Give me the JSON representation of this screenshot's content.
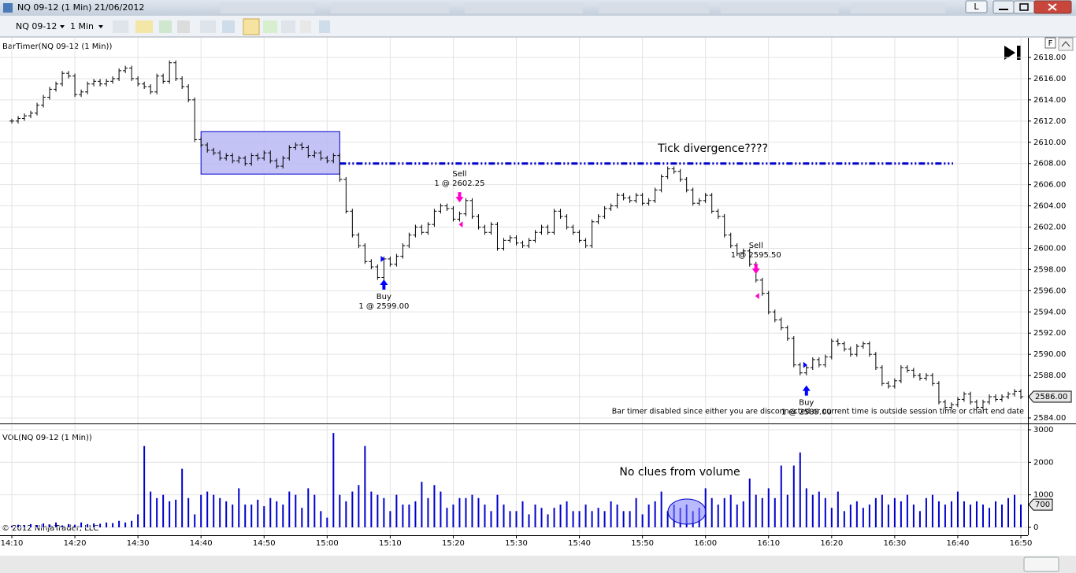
{
  "window": {
    "title": "NQ 09-12 (1 Min)  21/06/2012",
    "layout_button": "L"
  },
  "toolbar": {
    "instrument": "NQ 09-12",
    "interval": "1 Min"
  },
  "chart_data": {
    "type": "ohlc",
    "indicator_label": "BarTimer(NQ 09-12 (1 Min))",
    "x": [
      "14:10",
      "14:11",
      "14:12",
      "14:13",
      "14:14",
      "14:15",
      "14:16",
      "14:17",
      "14:18",
      "14:19",
      "14:20",
      "14:21",
      "14:22",
      "14:23",
      "14:24",
      "14:25",
      "14:26",
      "14:27",
      "14:28",
      "14:29",
      "14:30",
      "14:31",
      "14:32",
      "14:33",
      "14:34",
      "14:35",
      "14:36",
      "14:37",
      "14:38",
      "14:39",
      "14:40",
      "14:41",
      "14:42",
      "14:43",
      "14:44",
      "14:45",
      "14:46",
      "14:47",
      "14:48",
      "14:49",
      "14:50",
      "14:51",
      "14:52",
      "14:53",
      "14:54",
      "14:55",
      "14:56",
      "14:57",
      "14:58",
      "14:59",
      "15:00",
      "15:01",
      "15:02",
      "15:03",
      "15:04",
      "15:05",
      "15:06",
      "15:07",
      "15:08",
      "15:09",
      "15:10",
      "15:11",
      "15:12",
      "15:13",
      "15:14",
      "15:15",
      "15:16",
      "15:17",
      "15:18",
      "15:19",
      "15:20",
      "15:21",
      "15:22",
      "15:23",
      "15:24",
      "15:25",
      "15:26",
      "15:27",
      "15:28",
      "15:29",
      "15:30",
      "15:31",
      "15:32",
      "15:33",
      "15:34",
      "15:35",
      "15:36",
      "15:37",
      "15:38",
      "15:39",
      "15:40",
      "15:41",
      "15:42",
      "15:43",
      "15:44",
      "15:45",
      "15:46",
      "15:47",
      "15:48",
      "15:49",
      "15:50",
      "15:51",
      "15:52",
      "15:53",
      "15:54",
      "15:55",
      "15:56",
      "15:57",
      "15:58",
      "15:59",
      "16:00",
      "16:01",
      "16:02",
      "16:03",
      "16:04",
      "16:05",
      "16:06",
      "16:07",
      "16:08",
      "16:09",
      "16:10",
      "16:11",
      "16:12",
      "16:13",
      "16:14",
      "16:15",
      "16:16",
      "16:17",
      "16:18",
      "16:19",
      "16:20",
      "16:21",
      "16:22",
      "16:23",
      "16:24",
      "16:25",
      "16:26",
      "16:27",
      "16:28",
      "16:29",
      "16:30",
      "16:31",
      "16:32",
      "16:33",
      "16:34",
      "16:35",
      "16:36",
      "16:37",
      "16:38",
      "16:39",
      "16:40",
      "16:41",
      "16:42",
      "16:43",
      "16:44",
      "16:45",
      "16:46",
      "16:47",
      "16:48",
      "16:49",
      "16:50"
    ],
    "values": [
      2612,
      2612.25,
      2612.5,
      2612.75,
      2613.5,
      2614.25,
      2615,
      2615.5,
      2616.5,
      2616.25,
      2614.5,
      2614.75,
      2615.5,
      2615.75,
      2615.5,
      2615.75,
      2616,
      2616.75,
      2617,
      2616,
      2615.5,
      2615.25,
      2614.75,
      2616.25,
      2615.75,
      2617.5,
      2616,
      2615.25,
      2614,
      2610.25,
      2609.75,
      2609.25,
      2609,
      2608.5,
      2608.75,
      2608.25,
      2608.5,
      2608,
      2608.75,
      2608.5,
      2609,
      2608.25,
      2607.75,
      2608.5,
      2609.5,
      2609.75,
      2609.5,
      2608.75,
      2609,
      2608.5,
      2608.25,
      2608.75,
      2606.5,
      2603.5,
      2601.25,
      2600.25,
      2598.75,
      2598.25,
      2597.25,
      2599,
      2598.5,
      2599.25,
      2600.25,
      2601.25,
      2602,
      2601.5,
      2602.25,
      2603.5,
      2604,
      2603.75,
      2602.75,
      2603.25,
      2604.5,
      2603,
      2602,
      2601.5,
      2602.25,
      2600,
      2600.75,
      2601,
      2600.5,
      2600.25,
      2600.75,
      2601.5,
      2602,
      2601.5,
      2603.5,
      2603,
      2602,
      2601.5,
      2600.75,
      2600.25,
      2602.5,
      2603,
      2603.75,
      2604,
      2605,
      2604.75,
      2604.5,
      2605,
      2604.25,
      2604.5,
      2605.5,
      2606.75,
      2607.5,
      2607.25,
      2606.5,
      2605.5,
      2604.25,
      2604.5,
      2605,
      2603.5,
      2603,
      2601.25,
      2600.25,
      2599.5,
      2599.75,
      2598.5,
      2597,
      2595.75,
      2594,
      2593.25,
      2592.5,
      2591.5,
      2589,
      2588.25,
      2588.75,
      2589.5,
      2589,
      2589.75,
      2591.25,
      2591,
      2590.5,
      2590,
      2590.75,
      2591,
      2590,
      2588.75,
      2587.25,
      2587,
      2587.5,
      2588.75,
      2588.5,
      2588,
      2587.75,
      2588,
      2587.25,
      2585.5,
      2585,
      2585.25,
      2585.75,
      2586.25,
      2585.5,
      2585,
      2585.5,
      2586,
      2585.75,
      2586,
      2586.25,
      2586.5,
      2586
    ],
    "color": "#000000",
    "ylim": [
      2584,
      2618
    ],
    "yticks": [
      {
        "value": 2584,
        "label": "2584.00"
      },
      {
        "value": 2586,
        "label": "2586.00"
      },
      {
        "value": 2588,
        "label": "2588.00"
      },
      {
        "value": 2590,
        "label": "2590.00"
      },
      {
        "value": 2592,
        "label": "2592.00"
      },
      {
        "value": 2594,
        "label": "2594.00"
      },
      {
        "value": 2596,
        "label": "2596.00"
      },
      {
        "value": 2598,
        "label": "2598.00"
      },
      {
        "value": 2600,
        "label": "2600.00"
      },
      {
        "value": 2602,
        "label": "2602.00"
      },
      {
        "value": 2604,
        "label": "2604.00"
      },
      {
        "value": 2606,
        "label": "2606.00"
      },
      {
        "value": 2608,
        "label": "2608.00"
      },
      {
        "value": 2610,
        "label": "2610.00"
      },
      {
        "value": 2612,
        "label": "2612.00"
      },
      {
        "value": 2614,
        "label": "2614.00"
      },
      {
        "value": 2616,
        "label": "2616.00"
      },
      {
        "value": 2618,
        "label": "2618.00"
      }
    ],
    "grid": true,
    "last_price": {
      "value": 2586,
      "label": "2586.00"
    },
    "level": {
      "value": 2608,
      "color": "#0000cc"
    },
    "box": {
      "from": "14:40",
      "to": "15:02",
      "low": 2607,
      "high": 2611,
      "color": "#b8b8f5"
    },
    "annotations": [
      {
        "text": "Tick divergence????",
        "color": "#e8262a"
      }
    ],
    "trades": [
      {
        "side": "Sell",
        "text": "1 @ 2602.25",
        "time": "15:21",
        "price": 2602.25
      },
      {
        "side": "Buy",
        "text": "1 @ 2599.00",
        "time": "15:09",
        "price": 2599
      },
      {
        "side": "Sell",
        "text": "1 @ 2595.50",
        "time": "16:08",
        "price": 2595.5
      },
      {
        "side": "Buy",
        "text": "1 @ 2589.00",
        "time": "16:16",
        "price": 2589
      }
    ],
    "status_message": "Bar timer disabled since either you are disconnected or current time is outside session time or chart end date",
    "volume": {
      "type": "bar",
      "indicator_label": "VOL(NQ 09-12 (1 Min))",
      "values": [
        50,
        80,
        60,
        100,
        70,
        120,
        90,
        150,
        60,
        100,
        80,
        150,
        100,
        120,
        110,
        150,
        130,
        200,
        150,
        200,
        400,
        2500,
        1100,
        900,
        1000,
        800,
        850,
        1800,
        900,
        400,
        1000,
        1100,
        1000,
        900,
        800,
        700,
        1200,
        700,
        700,
        850,
        650,
        900,
        800,
        700,
        1100,
        1000,
        600,
        1200,
        1000,
        500,
        300,
        2900,
        1000,
        800,
        1100,
        1300,
        2500,
        1100,
        1000,
        900,
        500,
        1000,
        700,
        700,
        800,
        1400,
        900,
        1300,
        1100,
        600,
        700,
        900,
        900,
        1000,
        900,
        700,
        500,
        1000,
        700,
        500,
        500,
        800,
        400,
        700,
        600,
        400,
        600,
        700,
        800,
        500,
        500,
        700,
        500,
        600,
        500,
        800,
        700,
        500,
        500,
        900,
        400,
        700,
        800,
        1100,
        500,
        700,
        600,
        700,
        500,
        600,
        1200,
        900,
        700,
        900,
        1000,
        700,
        800,
        1500,
        1000,
        900,
        1200,
        900,
        1900,
        1000,
        1900,
        2300,
        1200,
        1000,
        1100,
        900,
        600,
        1100,
        500,
        700,
        800,
        600,
        700,
        900,
        1000,
        700,
        900,
        800,
        1000,
        700,
        500,
        900,
        1000,
        800,
        700,
        800,
        1100,
        800,
        700,
        800,
        700,
        600,
        800,
        700,
        900,
        1000,
        700
      ],
      "color": "#0000cc",
      "ylim": [
        0,
        3000
      ],
      "yticks": [
        0,
        1000,
        2000,
        3000
      ],
      "annotation": {
        "text": "No clues from volume",
        "color": "#e620e6"
      }
    }
  },
  "footer": {
    "copyright": "© 2012 NinjaTrader, LLC"
  }
}
